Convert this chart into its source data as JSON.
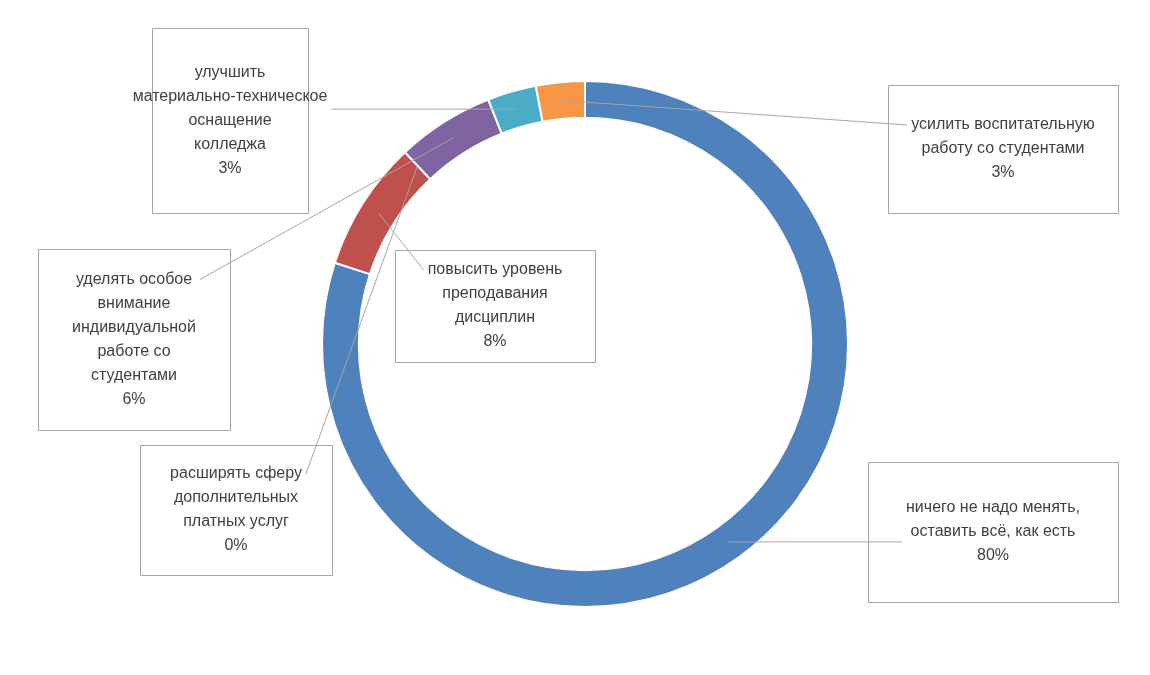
{
  "chart_data": {
    "type": "donut",
    "categories": [
      "ничего не надо менять, оставить всё, как есть",
      "повысить уровень преподавания дисциплин",
      "расширять сферу дополнительных платных услуг",
      "уделять особое внимание индивидуальной работе со студентами",
      "улучшить материально-техническое оснащение колледжа",
      "усилить воспитательную работу со студентами"
    ],
    "values": [
      80,
      8,
      0,
      6,
      3,
      3
    ],
    "value_labels": [
      "80%",
      "8%",
      "0%",
      "6%",
      "3%",
      "3%"
    ],
    "colors": [
      "#4f81bd",
      "#c0504d",
      "#9bbb59",
      "#8064a2",
      "#4bacc6",
      "#f79646"
    ],
    "legend": false
  }
}
